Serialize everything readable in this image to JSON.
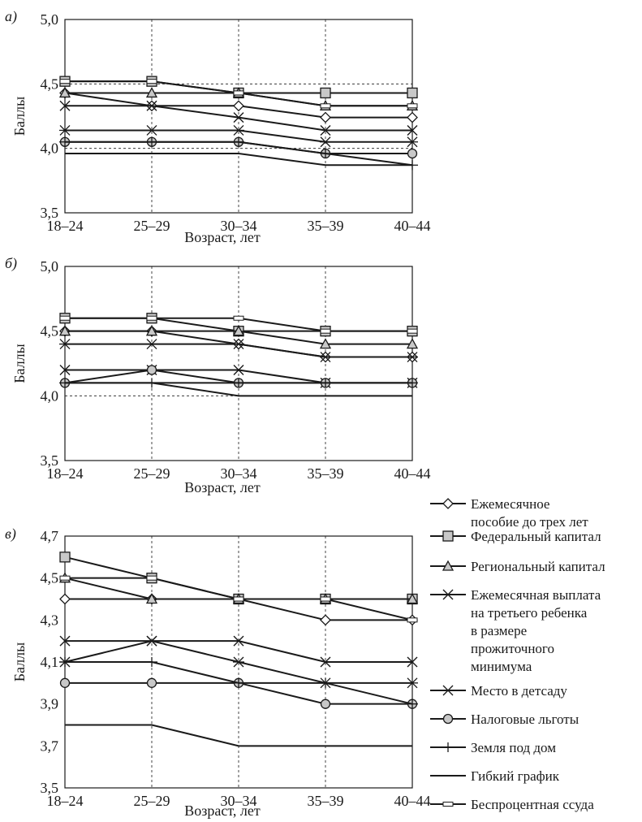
{
  "legend": [
    {
      "name": "Ежемесячное пособие до трех лет",
      "lines": [
        "Ежемесячное",
        "пособие до трех лет"
      ],
      "marker": "diamond-icon"
    },
    {
      "name": "Федеральный капитал",
      "lines": [
        "Федеральный капитал"
      ],
      "marker": "square-icon"
    },
    {
      "name": "Региональный капитал",
      "lines": [
        "Региональный капитал"
      ],
      "marker": "triangle-icon"
    },
    {
      "name": "Ежемесячная выплата на третьего ребенка в размере прожиточного минимума",
      "lines": [
        "Ежемесячная выплата",
        "на третьего ребенка",
        "в размере",
        "прожиточного",
        "минимума"
      ],
      "marker": "x-icon"
    },
    {
      "name": "Место в детсаду",
      "lines": [
        "Место в детсаду"
      ],
      "marker": "asterisk-icon"
    },
    {
      "name": "Налоговые льготы",
      "lines": [
        "Налоговые льготы"
      ],
      "marker": "circle-icon"
    },
    {
      "name": "Земля под дом",
      "lines": [
        "Земля под дом"
      ],
      "marker": "plus-icon"
    },
    {
      "name": "Гибкий график",
      "lines": [
        "Гибкий график"
      ],
      "marker": "none"
    },
    {
      "name": "Беспроцентная ссуда",
      "lines": [
        "Беспроцентная ссуда"
      ],
      "marker": "dash-icon"
    }
  ],
  "chart_data": [
    {
      "type": "line",
      "panel": "а)",
      "categories": [
        "18–24",
        "25–29",
        "30–34",
        "35–39",
        "40–44"
      ],
      "xlabel": "Возраст, лет",
      "ylabel": "Баллы",
      "ylim": [
        3.5,
        5.0
      ],
      "yticks": [
        "3,5",
        "4,0",
        "4,5",
        "5,0"
      ],
      "ytick_values": [
        3.5,
        4.0,
        4.5,
        5.0
      ],
      "dashed_h": [
        4.0,
        4.5
      ],
      "series": [
        {
          "name": "Ежемесячное пособие до трех лет",
          "marker": "diamond",
          "values": [
            4.43,
            4.33,
            4.33,
            4.24,
            4.24
          ]
        },
        {
          "name": "Федеральный капитал",
          "marker": "square",
          "values": [
            4.52,
            4.52,
            4.43,
            4.43,
            4.43
          ]
        },
        {
          "name": "Региональный капитал",
          "marker": "triangle",
          "values": [
            4.43,
            4.43,
            4.43,
            4.33,
            4.33
          ]
        },
        {
          "name": "Ежемесячная выплата на третьего ребенка в размере прожиточного минимума",
          "marker": "x",
          "values": [
            4.33,
            4.33,
            4.24,
            4.14,
            4.14
          ]
        },
        {
          "name": "Место в детсаду",
          "marker": "asterisk",
          "values": [
            4.14,
            4.14,
            4.14,
            4.05,
            4.05
          ]
        },
        {
          "name": "Налоговые льготы",
          "marker": "circle",
          "values": [
            4.05,
            4.05,
            4.05,
            3.96,
            3.96
          ]
        },
        {
          "name": "Земля под дом",
          "marker": "plus",
          "values": [
            4.05,
            4.05,
            4.05,
            3.96,
            3.87
          ]
        },
        {
          "name": "Гибкий график",
          "marker": "none",
          "values": [
            3.96,
            3.96,
            3.96,
            3.87,
            3.87
          ]
        },
        {
          "name": "Беспроцентная ссуда",
          "marker": "dash",
          "values": [
            4.52,
            4.52,
            4.43,
            4.33,
            4.33
          ]
        }
      ]
    },
    {
      "type": "line",
      "panel": "б)",
      "categories": [
        "18–24",
        "25–29",
        "30–34",
        "35–39",
        "40–44"
      ],
      "xlabel": "Возраст, лет",
      "ylabel": "Баллы",
      "ylim": [
        3.5,
        5.0
      ],
      "yticks": [
        "3,5",
        "4,0",
        "4,5",
        "5,0"
      ],
      "ytick_values": [
        3.5,
        4.0,
        4.5,
        5.0
      ],
      "dashed_h": [
        4.0
      ],
      "series": [
        {
          "name": "Ежемесячное пособие до трех лет",
          "marker": "diamond",
          "values": [
            4.5,
            4.5,
            4.4,
            4.3,
            4.3
          ]
        },
        {
          "name": "Федеральный капитал",
          "marker": "square",
          "values": [
            4.6,
            4.6,
            4.5,
            4.5,
            4.5
          ]
        },
        {
          "name": "Региональный капитал",
          "marker": "triangle",
          "values": [
            4.5,
            4.5,
            4.5,
            4.4,
            4.4
          ]
        },
        {
          "name": "Ежемесячная выплата на третьего ребенка в размере прожиточного минимума",
          "marker": "x",
          "values": [
            4.2,
            4.2,
            4.2,
            4.1,
            4.1
          ]
        },
        {
          "name": "Место в детсаду",
          "marker": "asterisk",
          "values": [
            4.4,
            4.4,
            4.4,
            4.3,
            4.3
          ]
        },
        {
          "name": "Налоговые льготы",
          "marker": "circle",
          "values": [
            4.1,
            4.2,
            4.1,
            4.1,
            4.1
          ]
        },
        {
          "name": "Земля под дом",
          "marker": "plus",
          "values": [
            4.1,
            4.1,
            4.1,
            4.1,
            4.1
          ]
        },
        {
          "name": "Гибкий график",
          "marker": "none",
          "values": [
            4.1,
            4.1,
            4.0,
            4.0,
            4.0
          ]
        },
        {
          "name": "Беспроцентная ссуда",
          "marker": "dash",
          "values": [
            4.6,
            4.6,
            4.6,
            4.5,
            4.5
          ]
        }
      ]
    },
    {
      "type": "line",
      "panel": "в)",
      "categories": [
        "18–24",
        "25–29",
        "30–34",
        "35–39",
        "40–44"
      ],
      "xlabel": "Возраст, лет",
      "ylabel": "Баллы",
      "ylim": [
        3.5,
        4.7
      ],
      "yticks": [
        "3,5",
        "3,7",
        "3,9",
        "4,1",
        "4,3",
        "4,5",
        "4,7"
      ],
      "ytick_values": [
        3.5,
        3.7,
        3.9,
        4.1,
        4.3,
        4.5,
        4.7
      ],
      "dashed_h": [],
      "series": [
        {
          "name": "Ежемесячное пособие до трех лет",
          "marker": "diamond",
          "values": [
            4.4,
            4.4,
            4.4,
            4.3,
            4.3
          ]
        },
        {
          "name": "Федеральный капитал",
          "marker": "square",
          "values": [
            4.6,
            4.5,
            4.4,
            4.4,
            4.4
          ]
        },
        {
          "name": "Региональный капитал",
          "marker": "triangle",
          "values": [
            4.5,
            4.4,
            4.4,
            4.4,
            4.4
          ]
        },
        {
          "name": "Ежемесячная выплата на третьего ребенка в размере прожиточного минимума",
          "marker": "x",
          "values": [
            4.2,
            4.2,
            4.2,
            4.1,
            4.1
          ]
        },
        {
          "name": "Место в детсаду",
          "marker": "asterisk",
          "values": [
            4.1,
            4.2,
            4.1,
            4.0,
            4.0
          ]
        },
        {
          "name": "Налоговые льготы",
          "marker": "circle",
          "values": [
            4.0,
            4.0,
            4.0,
            3.9,
            3.9
          ]
        },
        {
          "name": "Земля под дом",
          "marker": "plus",
          "values": [
            4.1,
            4.1,
            4.0,
            4.0,
            3.9
          ]
        },
        {
          "name": "Гибкий график",
          "marker": "none",
          "values": [
            3.8,
            3.8,
            3.7,
            3.7,
            3.7
          ]
        },
        {
          "name": "Беспроцентная ссуда",
          "marker": "dash",
          "values": [
            4.5,
            4.5,
            4.4,
            4.4,
            4.3
          ]
        }
      ]
    }
  ]
}
